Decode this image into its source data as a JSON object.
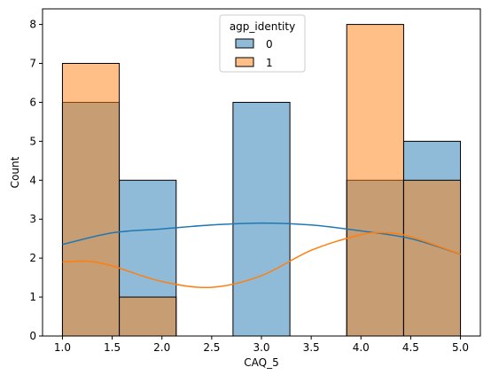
{
  "chart_data": {
    "type": "histogram",
    "xlabel": "CAQ_5",
    "ylabel": "Count",
    "xlim": [
      0.8,
      5.2
    ],
    "ylim": [
      0,
      8.4
    ],
    "xticks": [
      "1.0",
      "1.5",
      "2.0",
      "2.5",
      "3.0",
      "3.5",
      "4.0",
      "4.5",
      "5.0"
    ],
    "yticks": [
      "0",
      "1",
      "2",
      "3",
      "4",
      "5",
      "6",
      "7",
      "8"
    ],
    "grid": false,
    "legend": {
      "title": "agp_identity",
      "placement": "top-center"
    },
    "bin_edges": [
      1.0,
      1.571,
      2.143,
      2.714,
      3.286,
      3.857,
      4.429,
      5.0
    ],
    "series": [
      {
        "name": "0",
        "color": "#1f77b4",
        "counts": [
          6,
          4,
          0,
          6,
          0,
          4,
          5
        ],
        "kde": {
          "x": [
            1.0,
            1.5,
            2.0,
            2.5,
            3.0,
            3.5,
            4.0,
            4.5,
            5.0
          ],
          "y": [
            2.35,
            2.65,
            2.75,
            2.85,
            2.9,
            2.85,
            2.7,
            2.5,
            2.1
          ]
        }
      },
      {
        "name": "1",
        "color": "#ff7f0e",
        "counts": [
          7,
          1,
          0,
          0,
          0,
          8,
          4
        ],
        "kde": {
          "x": [
            1.0,
            1.25,
            1.5,
            2.0,
            2.5,
            3.0,
            3.5,
            4.0,
            4.25,
            4.5,
            5.0
          ],
          "y": [
            1.9,
            1.92,
            1.8,
            1.4,
            1.25,
            1.55,
            2.2,
            2.6,
            2.65,
            2.55,
            2.1
          ]
        }
      }
    ]
  }
}
